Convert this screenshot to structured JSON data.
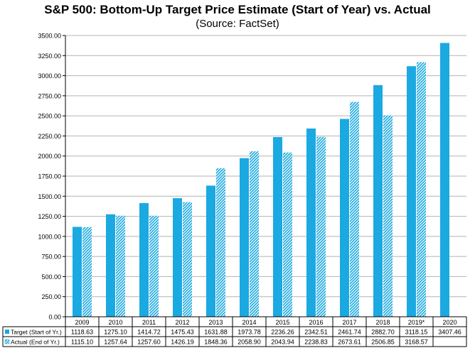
{
  "chart_data": {
    "type": "bar",
    "title": "S&P 500: Bottom-Up  Target Price Estimate (Start of Year) vs. Actual",
    "subtitle": "(Source: FactSet)",
    "categories": [
      "2009",
      "2010",
      "2011",
      "2012",
      "2013",
      "2014",
      "2015",
      "2016",
      "2017",
      "2018",
      "2019*",
      "2020"
    ],
    "series": [
      {
        "name": "Target (Start of Yr.)",
        "color": "#1ba9e1",
        "pattern": "solid",
        "values": [
          1118.63,
          1275.1,
          1414.72,
          1475.43,
          1631.88,
          1973.78,
          2236.26,
          2342.51,
          2461.74,
          2882.7,
          3118.15,
          3407.46
        ],
        "labels": [
          "1118.63",
          "1275.10",
          "1414.72",
          "1475.43",
          "1631.88",
          "1973.78",
          "2236.26",
          "2342.51",
          "2461.74",
          "2882.70",
          "3118.15",
          "3407.46"
        ]
      },
      {
        "name": "Actual (End of Yr.)",
        "color": "#1ba9e1",
        "pattern": "diagonal-hatch",
        "values": [
          1115.1,
          1257.64,
          1257.6,
          1426.19,
          1848.36,
          2058.9,
          2043.94,
          2238.83,
          2673.61,
          2506.85,
          3168.57,
          null
        ],
        "labels": [
          "1115.10",
          "1257.64",
          "1257.60",
          "1426.19",
          "1848.36",
          "2058.90",
          "2043.94",
          "2238.83",
          "2673.61",
          "2506.85",
          "3168.57",
          ""
        ]
      }
    ],
    "ylim": [
      0,
      3500
    ],
    "y_ticks": [
      "0.00",
      "250.00",
      "500.00",
      "750.00",
      "1000.00",
      "1250.00",
      "1500.00",
      "1750.00",
      "2000.00",
      "2250.00",
      "2500.00",
      "2750.00",
      "3000.00",
      "3250.00",
      "3500.00"
    ],
    "grid": true,
    "legend": "data-table-below"
  }
}
